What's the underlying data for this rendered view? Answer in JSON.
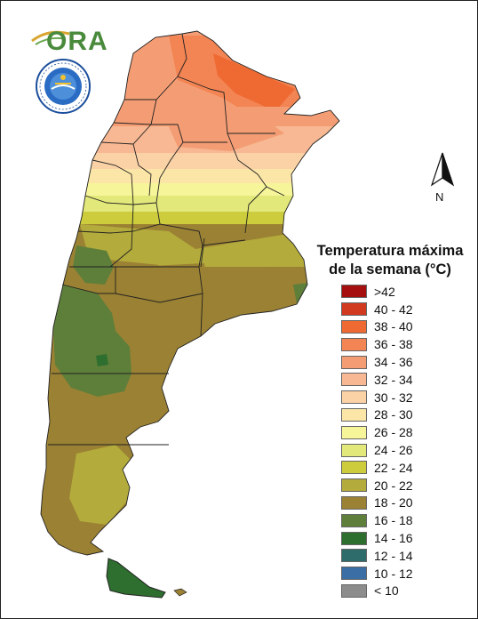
{
  "logo": {
    "text": "ORA"
  },
  "seal": {
    "name": "smn-seal",
    "ring_text": "SERVICIO METEOROLOGICO NACIONAL",
    "bottom_text": "ARGENTINA"
  },
  "north_arrow": {
    "label": "N"
  },
  "legend": {
    "title_line1": "Temperatura máxima",
    "title_line2": "de la semana (°C)",
    "items": [
      {
        "label": ">42",
        "color": "#a50f0f"
      },
      {
        "label": "40 - 42",
        "color": "#d13a1f"
      },
      {
        "label": "38 - 40",
        "color": "#ee6a32"
      },
      {
        "label": "36 - 38",
        "color": "#f38453"
      },
      {
        "label": "34 - 36",
        "color": "#f49d74"
      },
      {
        "label": "32 - 34",
        "color": "#f7b893"
      },
      {
        "label": "30 - 32",
        "color": "#fad2a5"
      },
      {
        "label": "28 - 30",
        "color": "#fce6a7"
      },
      {
        "label": "26 - 28",
        "color": "#f7f59a"
      },
      {
        "label": "24 - 26",
        "color": "#e3e87a"
      },
      {
        "label": "22 - 24",
        "color": "#cccc3d"
      },
      {
        "label": "20 - 22",
        "color": "#b3ab3c"
      },
      {
        "label": "18 - 20",
        "color": "#9b8133"
      },
      {
        "label": "16 - 18",
        "color": "#5e7f3a"
      },
      {
        "label": "14 - 16",
        "color": "#2e6e2e"
      },
      {
        "label": "12 - 14",
        "color": "#2e6b6b"
      },
      {
        "label": "10 - 12",
        "color": "#3a6ea5"
      },
      {
        "label": "< 10",
        "color": "#8c8c8c"
      }
    ]
  }
}
